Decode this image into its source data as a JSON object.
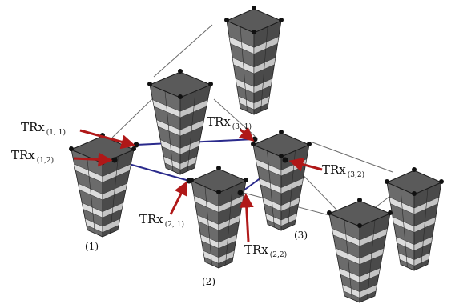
{
  "diagram": {
    "towers": [
      {
        "id": "A",
        "label": ""
      },
      {
        "id": "B",
        "label": ""
      },
      {
        "id": "1",
        "label": "(1)"
      },
      {
        "id": "2",
        "label": "(2)"
      },
      {
        "id": "3",
        "label": "(3)"
      },
      {
        "id": "C",
        "label": ""
      },
      {
        "id": "D",
        "label": ""
      }
    ],
    "transceivers": [
      {
        "key": "1_1",
        "base": "TRx",
        "sub": "(1, 1)",
        "arrow_color": "#b01818"
      },
      {
        "key": "1_2",
        "base": "TRx",
        "sub": "(1,2)",
        "arrow_color": "#b01818"
      },
      {
        "key": "3_1",
        "base": "TRx",
        "sub": "(3, 1)",
        "arrow_color": "#b01818"
      },
      {
        "key": "3_2",
        "base": "TRx",
        "sub": "(3,2)",
        "arrow_color": "#b01818"
      },
      {
        "key": "2_1",
        "base": "TRx",
        "sub": "(2, 1)",
        "arrow_color": "#b01818"
      },
      {
        "key": "2_2",
        "base": "TRx",
        "sub": "(2,2)",
        "arrow_color": "#b01818"
      }
    ],
    "colors": {
      "tower_dark": "#4a4a4a",
      "tower_mid": "#6b6b6b",
      "tower_band": "#dcdcdc",
      "tower_top": "#5a5a5a",
      "link_blue": "#2a2a8c",
      "link_gray": "#6a6a6a",
      "arrow_red": "#b01818"
    }
  }
}
